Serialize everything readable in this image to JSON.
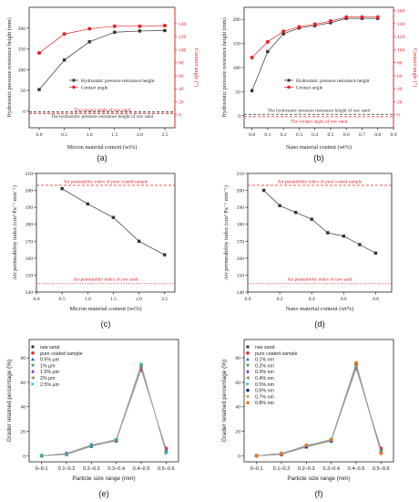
{
  "chart_data": [
    {
      "id": "a",
      "type": "line",
      "panel_label": "(a)",
      "xlabel": "Micron material content (wt%)",
      "ylabel": "Hydrostatic pressure resistance height (mm)",
      "y2label": "Contact angle (°)",
      "xlim": [
        -0.2,
        2.7
      ],
      "ylim": [
        -40,
        250
      ],
      "y2lim": [
        -20,
        165
      ],
      "xticks": [
        0.0,
        0.5,
        1.0,
        1.5,
        2.0,
        2.5
      ],
      "yticks": [
        0,
        50,
        100,
        150,
        200
      ],
      "y2ticks": [
        0,
        20,
        40,
        60,
        80,
        100,
        120,
        140
      ],
      "series": [
        {
          "name": "Hydrostatic pressure resistance height",
          "axis": "left",
          "color": "#333333",
          "marker": "square",
          "x": [
            0.0,
            0.5,
            1.0,
            1.5,
            2.0,
            2.5
          ],
          "values": [
            52,
            123,
            167,
            190,
            193,
            194
          ]
        },
        {
          "name": "Contact angle",
          "axis": "right",
          "color": "#e8242a",
          "marker": "circle",
          "x": [
            0.0,
            0.5,
            1.0,
            1.5,
            2.0,
            2.5
          ],
          "values": [
            95,
            124,
            132,
            136,
            136,
            137
          ]
        }
      ],
      "reference_lines": [
        {
          "label": "The contact angle of raw sand",
          "axis": "right",
          "value": 2,
          "color": "#e8242a"
        },
        {
          "label": "The hydrostatic pressure resistance height of raw sand",
          "axis": "left",
          "value": -2,
          "color": "#333333"
        }
      ],
      "legend_position": "center-right",
      "grid": false
    },
    {
      "id": "b",
      "type": "line",
      "panel_label": "(b)",
      "xlabel": "Nano material content (wt%)",
      "ylabel": "Hydrostatic pressure resistance height (mm)",
      "y2label": "Contact angle (°)",
      "xlim": [
        -0.05,
        0.9
      ],
      "ylim": [
        -25,
        225
      ],
      "y2lim": [
        -20,
        165
      ],
      "xticks": [
        0.0,
        0.1,
        0.2,
        0.3,
        0.4,
        0.5,
        0.6,
        0.7,
        0.8,
        0.9
      ],
      "yticks": [
        0,
        50,
        100,
        150,
        200
      ],
      "y2ticks": [
        0,
        20,
        40,
        60,
        80,
        100,
        120,
        140,
        160
      ],
      "series": [
        {
          "name": "Hydrostatic pressure resistance height",
          "axis": "left",
          "color": "#333333",
          "marker": "square",
          "x": [
            0.0,
            0.1,
            0.2,
            0.3,
            0.4,
            0.5,
            0.6,
            0.7,
            0.8
          ],
          "values": [
            52,
            133,
            170,
            182,
            187,
            193,
            202,
            202,
            202
          ]
        },
        {
          "name": "Contact angle",
          "axis": "right",
          "color": "#e8242a",
          "marker": "circle",
          "x": [
            0.0,
            0.1,
            0.2,
            0.3,
            0.4,
            0.5,
            0.6,
            0.7,
            0.8
          ],
          "values": [
            88,
            112,
            128,
            135,
            139,
            144,
            150,
            150,
            150
          ]
        }
      ],
      "reference_lines": [
        {
          "label": "The hydrostatic pressure resistance height of raw sand",
          "axis": "left",
          "value": 3,
          "color": "#333333"
        },
        {
          "label": "The contact angle of raw sand",
          "axis": "right",
          "value": -3,
          "color": "#e8242a"
        }
      ],
      "legend_position": "center-right",
      "grid": false
    },
    {
      "id": "c",
      "type": "line",
      "panel_label": "(c)",
      "xlabel": "Micron material content (wt%)",
      "ylabel": "Air permeability index (cm² Pa⁻¹ min⁻¹)",
      "xlim": [
        0.0,
        2.7
      ],
      "ylim": [
        140,
        210
      ],
      "xticks": [
        0.0,
        0.5,
        1.0,
        1.5,
        2.0,
        2.5
      ],
      "yticks": [
        140,
        150,
        160,
        170,
        180,
        190,
        200,
        210
      ],
      "series": [
        {
          "color": "#333333",
          "marker": "square",
          "x": [
            0.5,
            1.0,
            1.5,
            2.0,
            2.5
          ],
          "values": [
            201,
            192,
            184,
            170,
            162
          ]
        }
      ],
      "reference_lines": [
        {
          "label": "Air pemeability index of pure coated sample",
          "value": 203,
          "color": "#e8242a",
          "style": "dashed"
        },
        {
          "label": "Air pemeability index of raw sand",
          "value": 145,
          "color": "#e8242a",
          "style": "dotted"
        }
      ],
      "grid": false
    },
    {
      "id": "d",
      "type": "line",
      "panel_label": "(d)",
      "xlabel": "Nano material content (wt%)",
      "ylabel": "Air permeability index (cm² Pa⁻¹ min⁻¹)",
      "xlim": [
        0.0,
        0.9
      ],
      "ylim": [
        140,
        210
      ],
      "xticks": [
        0.0,
        0.2,
        0.4,
        0.6,
        0.8
      ],
      "yticks": [
        140,
        150,
        160,
        170,
        180,
        190,
        200,
        210
      ],
      "series": [
        {
          "color": "#333333",
          "marker": "square",
          "x": [
            0.1,
            0.2,
            0.3,
            0.4,
            0.5,
            0.6,
            0.7,
            0.8
          ],
          "values": [
            200,
            191,
            187,
            183,
            175,
            173,
            168,
            163
          ]
        }
      ],
      "reference_lines": [
        {
          "label": "Air pemeability index of pure coated sample",
          "value": 203,
          "color": "#e8242a",
          "style": "dashed"
        },
        {
          "label": "Air pemeability index of raw sand",
          "value": 145,
          "color": "#e8242a",
          "style": "dotted"
        }
      ],
      "grid": false
    },
    {
      "id": "e",
      "type": "line",
      "panel_label": "(e)",
      "xlabel": "Particle size range (mm)",
      "ylabel": "Grader retained percentage (%)",
      "categories": [
        "0–0.1",
        "0.1–0.2",
        "0.2–0.3",
        "0.3–0.4",
        "0.4–0.5",
        "0.5–0.6"
      ],
      "ylim": [
        -5,
        95
      ],
      "yticks": [
        0,
        20,
        40,
        60,
        80
      ],
      "series": [
        {
          "name": "raw sand",
          "color": "#333333",
          "marker": "square",
          "values": [
            0,
            1,
            8,
            12,
            72,
            5
          ]
        },
        {
          "name": "pure coated sample",
          "color": "#e8242a",
          "marker": "circle",
          "values": [
            0,
            1.5,
            8.5,
            12.5,
            70,
            6
          ]
        },
        {
          "name": "0.5% μm",
          "color": "#2a6fd4",
          "marker": "triangle-up",
          "values": [
            0,
            1,
            7.5,
            13,
            74,
            3
          ]
        },
        {
          "name": "1% μm",
          "color": "#2aa84a",
          "marker": "triangle-down",
          "values": [
            0,
            1.5,
            8,
            12.5,
            73,
            4
          ]
        },
        {
          "name": "1.5% μm",
          "color": "#8a3ac8",
          "marker": "diamond",
          "values": [
            0,
            2,
            9,
            13,
            72,
            4
          ]
        },
        {
          "name": "2% μm",
          "color": "#6a8a2a",
          "marker": "triangle-left",
          "values": [
            0,
            1,
            8,
            13.5,
            74,
            3
          ]
        },
        {
          "name": "2.5% μm",
          "color": "#22b8c8",
          "marker": "triangle-right",
          "values": [
            0,
            1.5,
            8.5,
            13,
            75,
            2
          ]
        }
      ],
      "legend_position": "top-left",
      "grid": false
    },
    {
      "id": "f",
      "type": "line",
      "panel_label": "(f)",
      "xlabel": "Particle size range (mm)",
      "ylabel": "Grader retained percentage (%)",
      "categories": [
        "0–0.1",
        "0.1–0.2",
        "0.2–0.3",
        "0.3–0.4",
        "0.4–0.5",
        "0.5–0.6"
      ],
      "ylim": [
        -5,
        95
      ],
      "yticks": [
        0,
        20,
        40,
        60,
        80
      ],
      "series": [
        {
          "name": "raw sand",
          "color": "#333333",
          "marker": "square",
          "values": [
            0,
            1,
            8,
            12,
            72,
            5
          ]
        },
        {
          "name": "pure coated sample",
          "color": "#e8242a",
          "marker": "circle",
          "values": [
            0,
            1.5,
            8.5,
            12.5,
            71,
            6
          ]
        },
        {
          "name": "0.1% nm",
          "color": "#2a6fd4",
          "marker": "triangle-up",
          "values": [
            0,
            1,
            7,
            12,
            73,
            4
          ]
        },
        {
          "name": "0.2% nm",
          "color": "#2aa84a",
          "marker": "triangle-down",
          "values": [
            0,
            1.5,
            7.5,
            12.5,
            74,
            4
          ]
        },
        {
          "name": "0.3% nm",
          "color": "#8a3ac8",
          "marker": "diamond",
          "values": [
            0,
            2,
            8,
            13,
            72,
            3
          ]
        },
        {
          "name": "0.4% nm",
          "color": "#6a8a2a",
          "marker": "triangle-left",
          "values": [
            0,
            1,
            8.5,
            13,
            73,
            3
          ]
        },
        {
          "name": "0.5% nm",
          "color": "#22b8c8",
          "marker": "triangle-right",
          "values": [
            0,
            1.5,
            8,
            13.5,
            74,
            3
          ]
        },
        {
          "name": "0.6% nm",
          "color": "#1a2a8a",
          "marker": "hexagon",
          "values": [
            0,
            1,
            7.5,
            12.5,
            75,
            2
          ]
        },
        {
          "name": "0.7% nm",
          "color": "#b06a1a",
          "marker": "star",
          "values": [
            0,
            2,
            8,
            13,
            74,
            2
          ]
        },
        {
          "name": "0.8% nm",
          "color": "#f07a1a",
          "marker": "circle",
          "values": [
            0,
            1.5,
            8.5,
            13,
            76,
            2
          ]
        }
      ],
      "legend_position": "top-left",
      "grid": false
    }
  ]
}
